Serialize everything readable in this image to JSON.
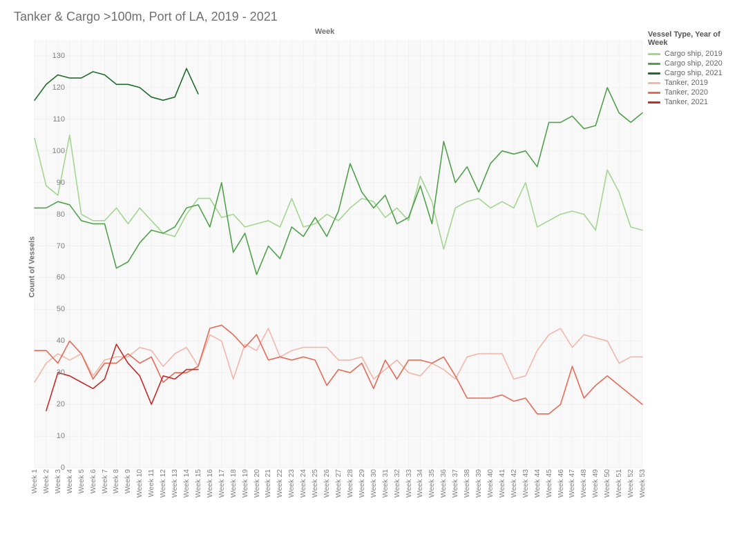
{
  "title": "Tanker & Cargo >100m, Port of LA, 2019 - 2021",
  "axis": {
    "xlabel_top": "Week",
    "ylabel": "Count of Vessels",
    "ylim": [
      0,
      135
    ],
    "yticks": [
      0,
      10,
      20,
      30,
      40,
      50,
      60,
      70,
      80,
      90,
      100,
      110,
      120,
      130
    ],
    "weeks": 53,
    "grid_color": "#f0f0f0",
    "plot_bg": "#f9f9f9",
    "tick_fontsize": 11,
    "line_width": 1.6
  },
  "legend": {
    "title": "Vessel Type, Year of Week",
    "items": [
      {
        "label": "Cargo ship, 2019",
        "color": "#a3d68e",
        "key": "cargo2019"
      },
      {
        "label": "Cargo ship, 2020",
        "color": "#4fa24a",
        "key": "cargo2020"
      },
      {
        "label": "Cargo ship, 2021",
        "color": "#1f6b2a",
        "key": "cargo2021"
      },
      {
        "label": "Tanker, 2019",
        "color": "#f4b6a8",
        "key": "tanker2019"
      },
      {
        "label": "Tanker, 2020",
        "color": "#e66a54",
        "key": "tanker2020"
      },
      {
        "label": "Tanker, 2021",
        "color": "#c62828",
        "key": "tanker2021"
      }
    ]
  },
  "series": {
    "cargo2019": {
      "color": "#a3d68e",
      "values": [
        104,
        89,
        86,
        105,
        80,
        78,
        78,
        82,
        77,
        82,
        78,
        74,
        73,
        80,
        85,
        85,
        79,
        80,
        76,
        77,
        78,
        76,
        85,
        76,
        77,
        80,
        78,
        82,
        85,
        84,
        79,
        82,
        78,
        92,
        84,
        69,
        82,
        84,
        85,
        82,
        84,
        82,
        90,
        76,
        78,
        80,
        81,
        80,
        75,
        94,
        87,
        76,
        75
      ]
    },
    "cargo2020": {
      "color": "#4fa24a",
      "values": [
        82,
        82,
        84,
        83,
        78,
        77,
        77,
        63,
        65,
        71,
        75,
        74,
        76,
        82,
        83,
        76,
        90,
        68,
        74,
        61,
        70,
        66,
        76,
        73,
        79,
        73,
        81,
        96,
        87,
        82,
        86,
        77,
        79,
        89,
        77,
        103,
        90,
        95,
        87,
        96,
        100,
        99,
        100,
        95,
        109,
        109,
        111,
        107,
        108,
        120,
        112,
        109,
        112
      ]
    },
    "cargo2021": {
      "color": "#1f6b2a",
      "values": [
        116,
        121,
        124,
        123,
        123,
        125,
        124,
        121,
        121,
        120,
        117,
        116,
        117,
        126,
        118
      ]
    },
    "tanker2019": {
      "color": "#f4b6a8",
      "values": [
        27,
        33,
        36,
        34,
        36,
        29,
        34,
        35,
        35,
        38,
        37,
        32,
        36,
        38,
        32,
        42,
        40,
        28,
        39,
        37,
        44,
        35,
        37,
        38,
        38,
        38,
        34,
        34,
        35,
        28,
        31,
        34,
        30,
        29,
        33,
        31,
        28,
        35,
        36,
        36,
        36,
        28,
        29,
        37,
        42,
        44,
        38,
        42,
        41,
        40,
        33,
        35,
        35
      ]
    },
    "tanker2020": {
      "color": "#e66a54",
      "values": [
        37,
        37,
        33,
        40,
        36,
        28,
        33,
        33,
        36,
        33,
        35,
        27,
        30,
        30,
        32,
        44,
        45,
        42,
        38,
        42,
        34,
        35,
        34,
        35,
        34,
        26,
        31,
        30,
        33,
        25,
        34,
        28,
        34,
        34,
        33,
        35,
        29,
        22,
        22,
        22,
        23,
        21,
        22,
        17,
        17,
        20,
        32,
        22,
        26,
        29,
        26,
        23,
        20
      ]
    },
    "tanker2021": {
      "color": "#c62828",
      "values": [
        null,
        18,
        30,
        29,
        27,
        25,
        28,
        39,
        33,
        29,
        20,
        29,
        28,
        31,
        31
      ]
    }
  },
  "xticks": [
    "Week 1",
    "Week 2",
    "Week 3",
    "Week 4",
    "Week 5",
    "Week 6",
    "Week 7",
    "Week 8",
    "Week 9",
    "Week 10",
    "Week 11",
    "Week 12",
    "Week 13",
    "Week 14",
    "Week 15",
    "Week 16",
    "Week 17",
    "Week 18",
    "Week 19",
    "Week 20",
    "Week 21",
    "Week 22",
    "Week 23",
    "Week 24",
    "Week 25",
    "Week 26",
    "Week 27",
    "Week 28",
    "Week 29",
    "Week 30",
    "Week 31",
    "Week 32",
    "Week 33",
    "Week 34",
    "Week 35",
    "Week 36",
    "Week 37",
    "Week 38",
    "Week 39",
    "Week 40",
    "Week 41",
    "Week 42",
    "Week 43",
    "Week 44",
    "Week 45",
    "Week 46",
    "Week 47",
    "Week 48",
    "Week 49",
    "Week 50",
    "Week 51",
    "Week 52",
    "Week 53"
  ]
}
